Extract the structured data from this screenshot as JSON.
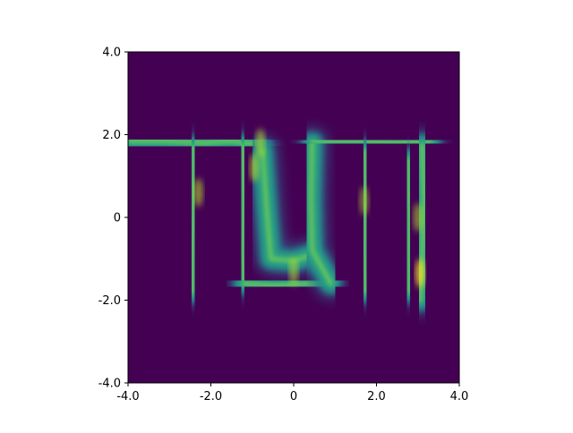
{
  "chart_data": {
    "type": "heatmap",
    "title": "",
    "xlabel": "",
    "ylabel": "",
    "xlim": [
      -4.0,
      4.0
    ],
    "ylim": [
      -4.0,
      4.0
    ],
    "x_ticks": [
      -4.0,
      -2.0,
      0,
      2.0,
      4.0
    ],
    "y_ticks": [
      4.0,
      2.0,
      0,
      -2.0,
      -4.0
    ],
    "x_tick_labels": [
      "-4.0",
      "-2.0",
      "0",
      "2.0",
      "4.0"
    ],
    "y_tick_labels": [
      "4.0",
      "2.0",
      "0",
      "-2.0",
      "-4.0"
    ],
    "grid": false,
    "colormap": "viridis",
    "background_color": "#440154",
    "density_shape": "TUM",
    "density_strokes": [
      {
        "name": "T-bar",
        "points": [
          [
            -3.95,
            1.85
          ],
          [
            -3.2,
            1.85
          ],
          [
            -2.2,
            1.8
          ],
          [
            -1.5,
            1.85
          ],
          [
            -0.8,
            1.75
          ]
        ]
      },
      {
        "name": "T-stem",
        "points": [
          [
            -2.4,
            1.7
          ],
          [
            -2.4,
            0.5
          ],
          [
            -2.45,
            -1.0
          ],
          [
            -2.45,
            -1.8
          ]
        ]
      },
      {
        "name": "U-left",
        "points": [
          [
            -1.25,
            1.75
          ],
          [
            -1.2,
            0.5
          ],
          [
            -1.25,
            -0.8
          ],
          [
            -1.2,
            -1.6
          ]
        ]
      },
      {
        "name": "U-bottom",
        "points": [
          [
            -1.2,
            -1.6
          ],
          [
            -0.5,
            -1.65
          ],
          [
            0.3,
            -1.6
          ],
          [
            0.9,
            -1.55
          ]
        ]
      },
      {
        "name": "U-right",
        "points": [
          [
            -0.75,
            1.6
          ],
          [
            -0.65,
            0.2
          ],
          [
            -0.55,
            -1.0
          ],
          [
            0.0,
            -1.05
          ],
          [
            0.45,
            -0.9
          ]
        ]
      },
      {
        "name": "M-left",
        "points": [
          [
            0.45,
            1.8
          ],
          [
            0.42,
            0.5
          ],
          [
            0.45,
            -0.8
          ],
          [
            0.9,
            -1.6
          ]
        ]
      },
      {
        "name": "M-top",
        "points": [
          [
            0.45,
            1.85
          ],
          [
            1.5,
            1.85
          ],
          [
            2.5,
            1.8
          ],
          [
            3.3,
            1.85
          ]
        ]
      },
      {
        "name": "M-middle",
        "points": [
          [
            1.7,
            1.6
          ],
          [
            1.75,
            0.4
          ],
          [
            1.7,
            -0.8
          ],
          [
            1.75,
            -1.8
          ]
        ]
      },
      {
        "name": "M-right",
        "points": [
          [
            3.1,
            1.75
          ],
          [
            3.15,
            0.4
          ],
          [
            3.1,
            -1.0
          ],
          [
            3.05,
            -2.0
          ]
        ]
      },
      {
        "name": "M-right-inner",
        "points": [
          [
            2.75,
            1.4
          ],
          [
            2.8,
            0.0
          ],
          [
            2.8,
            -1.8
          ]
        ]
      }
    ],
    "density_highlights": [
      {
        "x": 3.05,
        "y": -1.35,
        "level": 0.95
      },
      {
        "x": -0.95,
        "y": 1.2,
        "level": 0.85
      },
      {
        "x": -2.3,
        "y": 0.6,
        "level": 0.8
      },
      {
        "x": 0.0,
        "y": -1.3,
        "level": 0.75
      },
      {
        "x": 1.7,
        "y": 0.4,
        "level": 0.65
      },
      {
        "x": -0.8,
        "y": 1.8,
        "level": 0.8
      },
      {
        "x": 3.0,
        "y": 0.0,
        "level": 0.75
      }
    ]
  }
}
